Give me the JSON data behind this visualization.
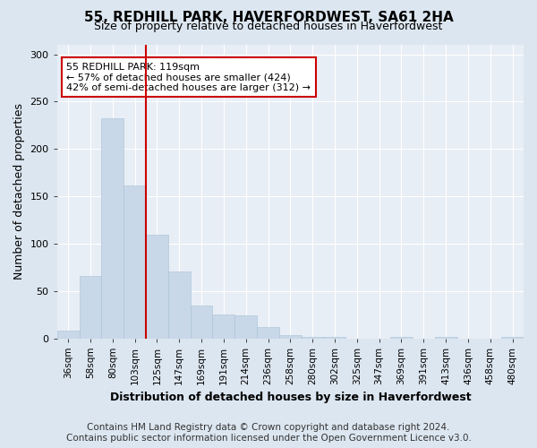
{
  "title": "55, REDHILL PARK, HAVERFORDWEST, SA61 2HA",
  "subtitle": "Size of property relative to detached houses in Haverfordwest",
  "xlabel": "Distribution of detached houses by size in Haverfordwest",
  "ylabel": "Number of detached properties",
  "categories": [
    "36sqm",
    "58sqm",
    "80sqm",
    "103sqm",
    "125sqm",
    "147sqm",
    "169sqm",
    "191sqm",
    "214sqm",
    "236sqm",
    "258sqm",
    "280sqm",
    "302sqm",
    "325sqm",
    "347sqm",
    "369sqm",
    "391sqm",
    "413sqm",
    "436sqm",
    "458sqm",
    "480sqm"
  ],
  "values": [
    8,
    66,
    232,
    161,
    109,
    71,
    35,
    25,
    24,
    12,
    3,
    1,
    1,
    0,
    0,
    1,
    0,
    1,
    0,
    0,
    1
  ],
  "bar_color": "#c8d8e8",
  "bar_edge_color": "#a8c0d8",
  "vline_color": "#cc0000",
  "vline_x": 3.5,
  "annotation_text": "55 REDHILL PARK: 119sqm\n← 57% of detached houses are smaller (424)\n42% of semi-detached houses are larger (312) →",
  "annotation_box_facecolor": "#ffffff",
  "annotation_box_edgecolor": "#cc0000",
  "ylim": [
    0,
    310
  ],
  "yticks": [
    0,
    50,
    100,
    150,
    200,
    250,
    300
  ],
  "bg_color": "#dce6f0",
  "plot_bg_color": "#e8eef5",
  "grid_color": "#ffffff",
  "title_fontsize": 11,
  "subtitle_fontsize": 9,
  "xlabel_fontsize": 9,
  "ylabel_fontsize": 9,
  "tick_fontsize": 8,
  "xtick_fontsize": 7.5,
  "footer_text": "Contains HM Land Registry data © Crown copyright and database right 2024.\nContains public sector information licensed under the Open Government Licence v3.0.",
  "footer_fontsize": 7.5
}
